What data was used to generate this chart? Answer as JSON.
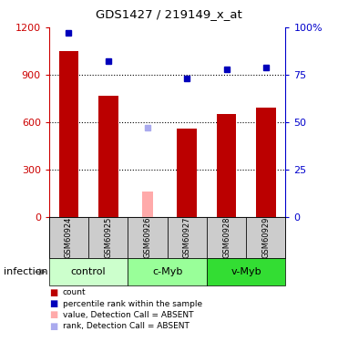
{
  "title": "GDS1427 / 219149_x_at",
  "samples": [
    "GSM60924",
    "GSM60925",
    "GSM60926",
    "GSM60927",
    "GSM60928",
    "GSM60929"
  ],
  "groups": [
    {
      "label": "control",
      "indices": [
        0,
        1
      ],
      "color": "#ccffcc"
    },
    {
      "label": "c-Myb",
      "indices": [
        2,
        3
      ],
      "color": "#99ff99"
    },
    {
      "label": "v-Myb",
      "indices": [
        4,
        5
      ],
      "color": "#33dd33"
    }
  ],
  "bar_values": [
    1050,
    770,
    null,
    560,
    650,
    690
  ],
  "bar_absent_values": [
    null,
    null,
    160,
    null,
    null,
    null
  ],
  "bar_color_present": "#bb0000",
  "bar_color_absent": "#ffaaaa",
  "rank_values": [
    97,
    82,
    null,
    73,
    78,
    79
  ],
  "rank_absent_values": [
    null,
    null,
    47,
    null,
    null,
    null
  ],
  "rank_color_present": "#0000bb",
  "rank_color_absent": "#aaaaee",
  "ylim_left": [
    0,
    1200
  ],
  "ylim_right": [
    0,
    100
  ],
  "yticks_left": [
    0,
    300,
    600,
    900,
    1200
  ],
  "yticks_right": [
    0,
    25,
    50,
    75,
    100
  ],
  "ytick_labels_left": [
    "0",
    "300",
    "600",
    "900",
    "1200"
  ],
  "ytick_labels_right": [
    "0",
    "25",
    "50",
    "75",
    "100%"
  ],
  "bar_width": 0.5,
  "infection_label": "infection",
  "legend_items": [
    {
      "color": "#bb0000",
      "label": "count"
    },
    {
      "color": "#0000bb",
      "label": "percentile rank within the sample"
    },
    {
      "color": "#ffaaaa",
      "label": "value, Detection Call = ABSENT"
    },
    {
      "color": "#aaaaee",
      "label": "rank, Detection Call = ABSENT"
    }
  ]
}
